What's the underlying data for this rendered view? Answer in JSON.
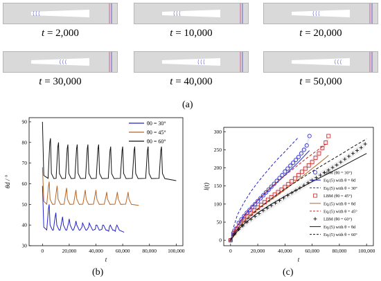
{
  "panel_a": {
    "label": "(a)",
    "snapshots": [
      {
        "t_label": "t = ",
        "t_value": "2,000",
        "fraction": 0.0
      },
      {
        "t_label": "t = ",
        "t_value": "10,000",
        "fraction": 0.2
      },
      {
        "t_label": "t = ",
        "t_value": "20,000",
        "fraction": 0.4
      },
      {
        "t_label": "t = ",
        "t_value": "30,000",
        "fraction": 0.55
      },
      {
        "t_label": "t = ",
        "t_value": "40,000",
        "fraction": 0.7
      },
      {
        "t_label": "t = ",
        "t_value": "50,000",
        "fraction": 0.85
      }
    ],
    "solid_color": "#d9d9d9",
    "interface_color": "#7070c0",
    "wall_marker_colors": [
      "#d04080",
      "#4040c0"
    ]
  },
  "panel_b": {
    "label": "(b)"
  },
  "panel_c": {
    "label": "(c)"
  },
  "chart_data": [
    {
      "type": "line",
      "xlabel": "t",
      "ylabel": "θd / °",
      "xlim": [
        -10000,
        105000
      ],
      "ylim": [
        30,
        92
      ],
      "xticks": [
        0,
        20000,
        40000,
        60000,
        80000,
        100000
      ],
      "xtick_labels": [
        "0",
        "20,000",
        "40,000",
        "60,000",
        "80,000",
        "100,000"
      ],
      "yticks": [
        30,
        40,
        50,
        60,
        70,
        80,
        90
      ],
      "legend_position": "top-right",
      "grid": false,
      "series": [
        {
          "name": "θ0 = 30°",
          "color": "#2222cc",
          "base": 37,
          "start_peak": 59,
          "peaks": [
            [
              5000,
              50
            ],
            [
              10000,
              46
            ],
            [
              15000,
              44
            ],
            [
              20000,
              43
            ],
            [
              25000,
              42
            ],
            [
              30000,
              41
            ],
            [
              35000,
              41
            ],
            [
              40000,
              40
            ],
            [
              45000,
              40
            ],
            [
              50000,
              39
            ],
            [
              55000,
              39
            ]
          ],
          "x_end": 61000,
          "end_value": 36.5
        },
        {
          "name": "θ0 = 45°",
          "color": "#b86422",
          "base": 49.5,
          "start_peak": 68,
          "peaks": [
            [
              5000,
              61
            ],
            [
              11000,
              59
            ],
            [
              18000,
              58
            ],
            [
              25000,
              57
            ],
            [
              32000,
              57
            ],
            [
              40000,
              57
            ],
            [
              48000,
              56
            ],
            [
              56000,
              56
            ],
            [
              64000,
              56
            ]
          ],
          "x_end": 72000,
          "end_value": 49.5
        },
        {
          "name": "θ0 = 60°",
          "color": "#111111",
          "base": 62,
          "start_peak": 90,
          "peaks": [
            [
              6000,
              82
            ],
            [
              12000,
              80
            ],
            [
              19000,
              79
            ],
            [
              26000,
              79
            ],
            [
              34000,
              79
            ],
            [
              42000,
              79
            ],
            [
              51000,
              78
            ],
            [
              60000,
              78
            ],
            [
              69000,
              78
            ],
            [
              79000,
              78
            ],
            [
              89000,
              78
            ]
          ],
          "x_end": 100000,
          "end_value": 61.5
        }
      ]
    },
    {
      "type": "scatter",
      "xlabel": "t",
      "ylabel": "l(t)",
      "xlim": [
        -5000,
        105000
      ],
      "ylim": [
        -15,
        312
      ],
      "xticks": [
        0,
        20000,
        40000,
        60000,
        80000,
        100000
      ],
      "xtick_labels": [
        "0",
        "20,000",
        "40,000",
        "60,000",
        "80,000",
        "100,000"
      ],
      "yticks": [
        0,
        50,
        100,
        150,
        200,
        250,
        300
      ],
      "legend_position": "bottom-right",
      "grid": false,
      "legend": [
        "LBM (θ0 = 30°)",
        "Eq.(5) with θ = θd",
        "Eq.(5) with θ = 30°",
        "LBM (θ0 = 45°)",
        "Eq.(5) with θ = θd",
        "Eq.(5) with θ = 45°",
        "LBM (θ0 = 60°)",
        "Eq.(5) with θ = θd",
        "Eq.(5) with θ = 60°"
      ],
      "series": [
        {
          "name": "LBM (θ0 = 30°)",
          "marker": "circle",
          "color": "#2222cc",
          "x": [
            0,
            2000,
            4000,
            6000,
            8000,
            10000,
            12000,
            14000,
            16000,
            18000,
            20000,
            22000,
            24000,
            26000,
            28000,
            30000,
            32000,
            34000,
            36000,
            38000,
            40000,
            42000,
            44000,
            46000,
            48000,
            50000,
            52000,
            54000,
            56000,
            58000
          ],
          "y": [
            0,
            20,
            32,
            48,
            58,
            67,
            76,
            84,
            92,
            100,
            108,
            116,
            124,
            132,
            140,
            148,
            156,
            164,
            172,
            180,
            190,
            198,
            206,
            214,
            222,
            230,
            240,
            250,
            262,
            288
          ]
        },
        {
          "name": "Eq.(5) with θ = θd (30°)",
          "style": "solid",
          "color": "#2222cc",
          "x": [
            0,
            2000,
            5000,
            10000,
            15000,
            20000,
            25000,
            30000,
            35000,
            40000,
            45000,
            50000,
            55000,
            58000
          ],
          "y": [
            0,
            20,
            40,
            68,
            90,
            110,
            128,
            146,
            163,
            180,
            198,
            216,
            236,
            248
          ]
        },
        {
          "name": "Eq.(5) with θ = 30°",
          "style": "dashed",
          "color": "#2222cc",
          "x": [
            0,
            2000,
            5000,
            10000,
            15000,
            20000,
            25000,
            30000,
            35000,
            40000,
            45000,
            50000
          ],
          "y": [
            0,
            33,
            70,
            105,
            135,
            160,
            183,
            205,
            226,
            245,
            265,
            285
          ]
        },
        {
          "name": "LBM (θ0 = 45°)",
          "marker": "square",
          "color": "#cc2222",
          "x": [
            0,
            2500,
            5000,
            7500,
            10000,
            12500,
            15000,
            17500,
            20000,
            22500,
            25000,
            27500,
            30000,
            32500,
            35000,
            37500,
            40000,
            42500,
            45000,
            47500,
            50000,
            52500,
            55000,
            57500,
            60000,
            62500,
            65000,
            67500,
            70000,
            72000
          ],
          "y": [
            0,
            20,
            32,
            45,
            55,
            65,
            74,
            82,
            90,
            98,
            105,
            112,
            119,
            126,
            133,
            140,
            147,
            155,
            163,
            171,
            180,
            189,
            198,
            207,
            216,
            228,
            240,
            255,
            270,
            288
          ]
        },
        {
          "name": "Eq.(5) with θ = θd (45°)",
          "style": "solid",
          "color": "#b86422",
          "x": [
            0,
            2500,
            5000,
            10000,
            15000,
            20000,
            25000,
            30000,
            35000,
            40000,
            45000,
            50000,
            55000,
            60000,
            65000,
            70000,
            72000
          ],
          "y": [
            0,
            20,
            32,
            54,
            72,
            87,
            100,
            113,
            126,
            140,
            154,
            168,
            183,
            198,
            213,
            228,
            235
          ]
        },
        {
          "name": "Eq.(5) with θ = 45°",
          "style": "dashed",
          "color": "#cc2222",
          "x": [
            0,
            2500,
            5000,
            10000,
            15000,
            20000,
            25000,
            30000,
            35000,
            40000,
            45000,
            50000,
            55000,
            60000,
            65000,
            70000
          ],
          "y": [
            0,
            25,
            40,
            66,
            90,
            110,
            129,
            147,
            163,
            179,
            194,
            209,
            224,
            238,
            252,
            266
          ]
        },
        {
          "name": "LBM (θ0 = 60°)",
          "marker": "plus",
          "color": "#111111",
          "x": [
            0,
            3000,
            6000,
            9000,
            12000,
            15000,
            18000,
            21000,
            24000,
            27000,
            30000,
            33000,
            36000,
            39000,
            42000,
            45000,
            48000,
            51000,
            54000,
            57000,
            60000,
            63000,
            66000,
            69000,
            72000,
            75000,
            78000,
            81000,
            84000,
            87000,
            90000,
            93000,
            96000,
            99000
          ],
          "y": [
            0,
            18,
            30,
            40,
            50,
            58,
            66,
            74,
            82,
            89,
            96,
            103,
            110,
            117,
            124,
            131,
            138,
            145,
            152,
            159,
            166,
            173,
            180,
            187,
            194,
            201,
            208,
            216,
            224,
            232,
            240,
            248,
            256,
            266
          ]
        },
        {
          "name": "Eq.(5) with θ = θd (60°)",
          "style": "solid",
          "color": "#111111",
          "x": [
            0,
            3000,
            6000,
            10000,
            20000,
            30000,
            40000,
            50000,
            60000,
            70000,
            80000,
            90000,
            100000
          ],
          "y": [
            0,
            15,
            30,
            45,
            76,
            100,
            122,
            142,
            162,
            181,
            200,
            220,
            240
          ]
        },
        {
          "name": "Eq.(5) with θ = 60°",
          "style": "dashed",
          "color": "#111111",
          "x": [
            0,
            3000,
            6000,
            10000,
            20000,
            30000,
            40000,
            50000,
            60000,
            70000,
            80000,
            90000,
            100000
          ],
          "y": [
            0,
            20,
            35,
            50,
            86,
            115,
            142,
            166,
            190,
            213,
            235,
            258,
            280
          ]
        }
      ]
    }
  ]
}
